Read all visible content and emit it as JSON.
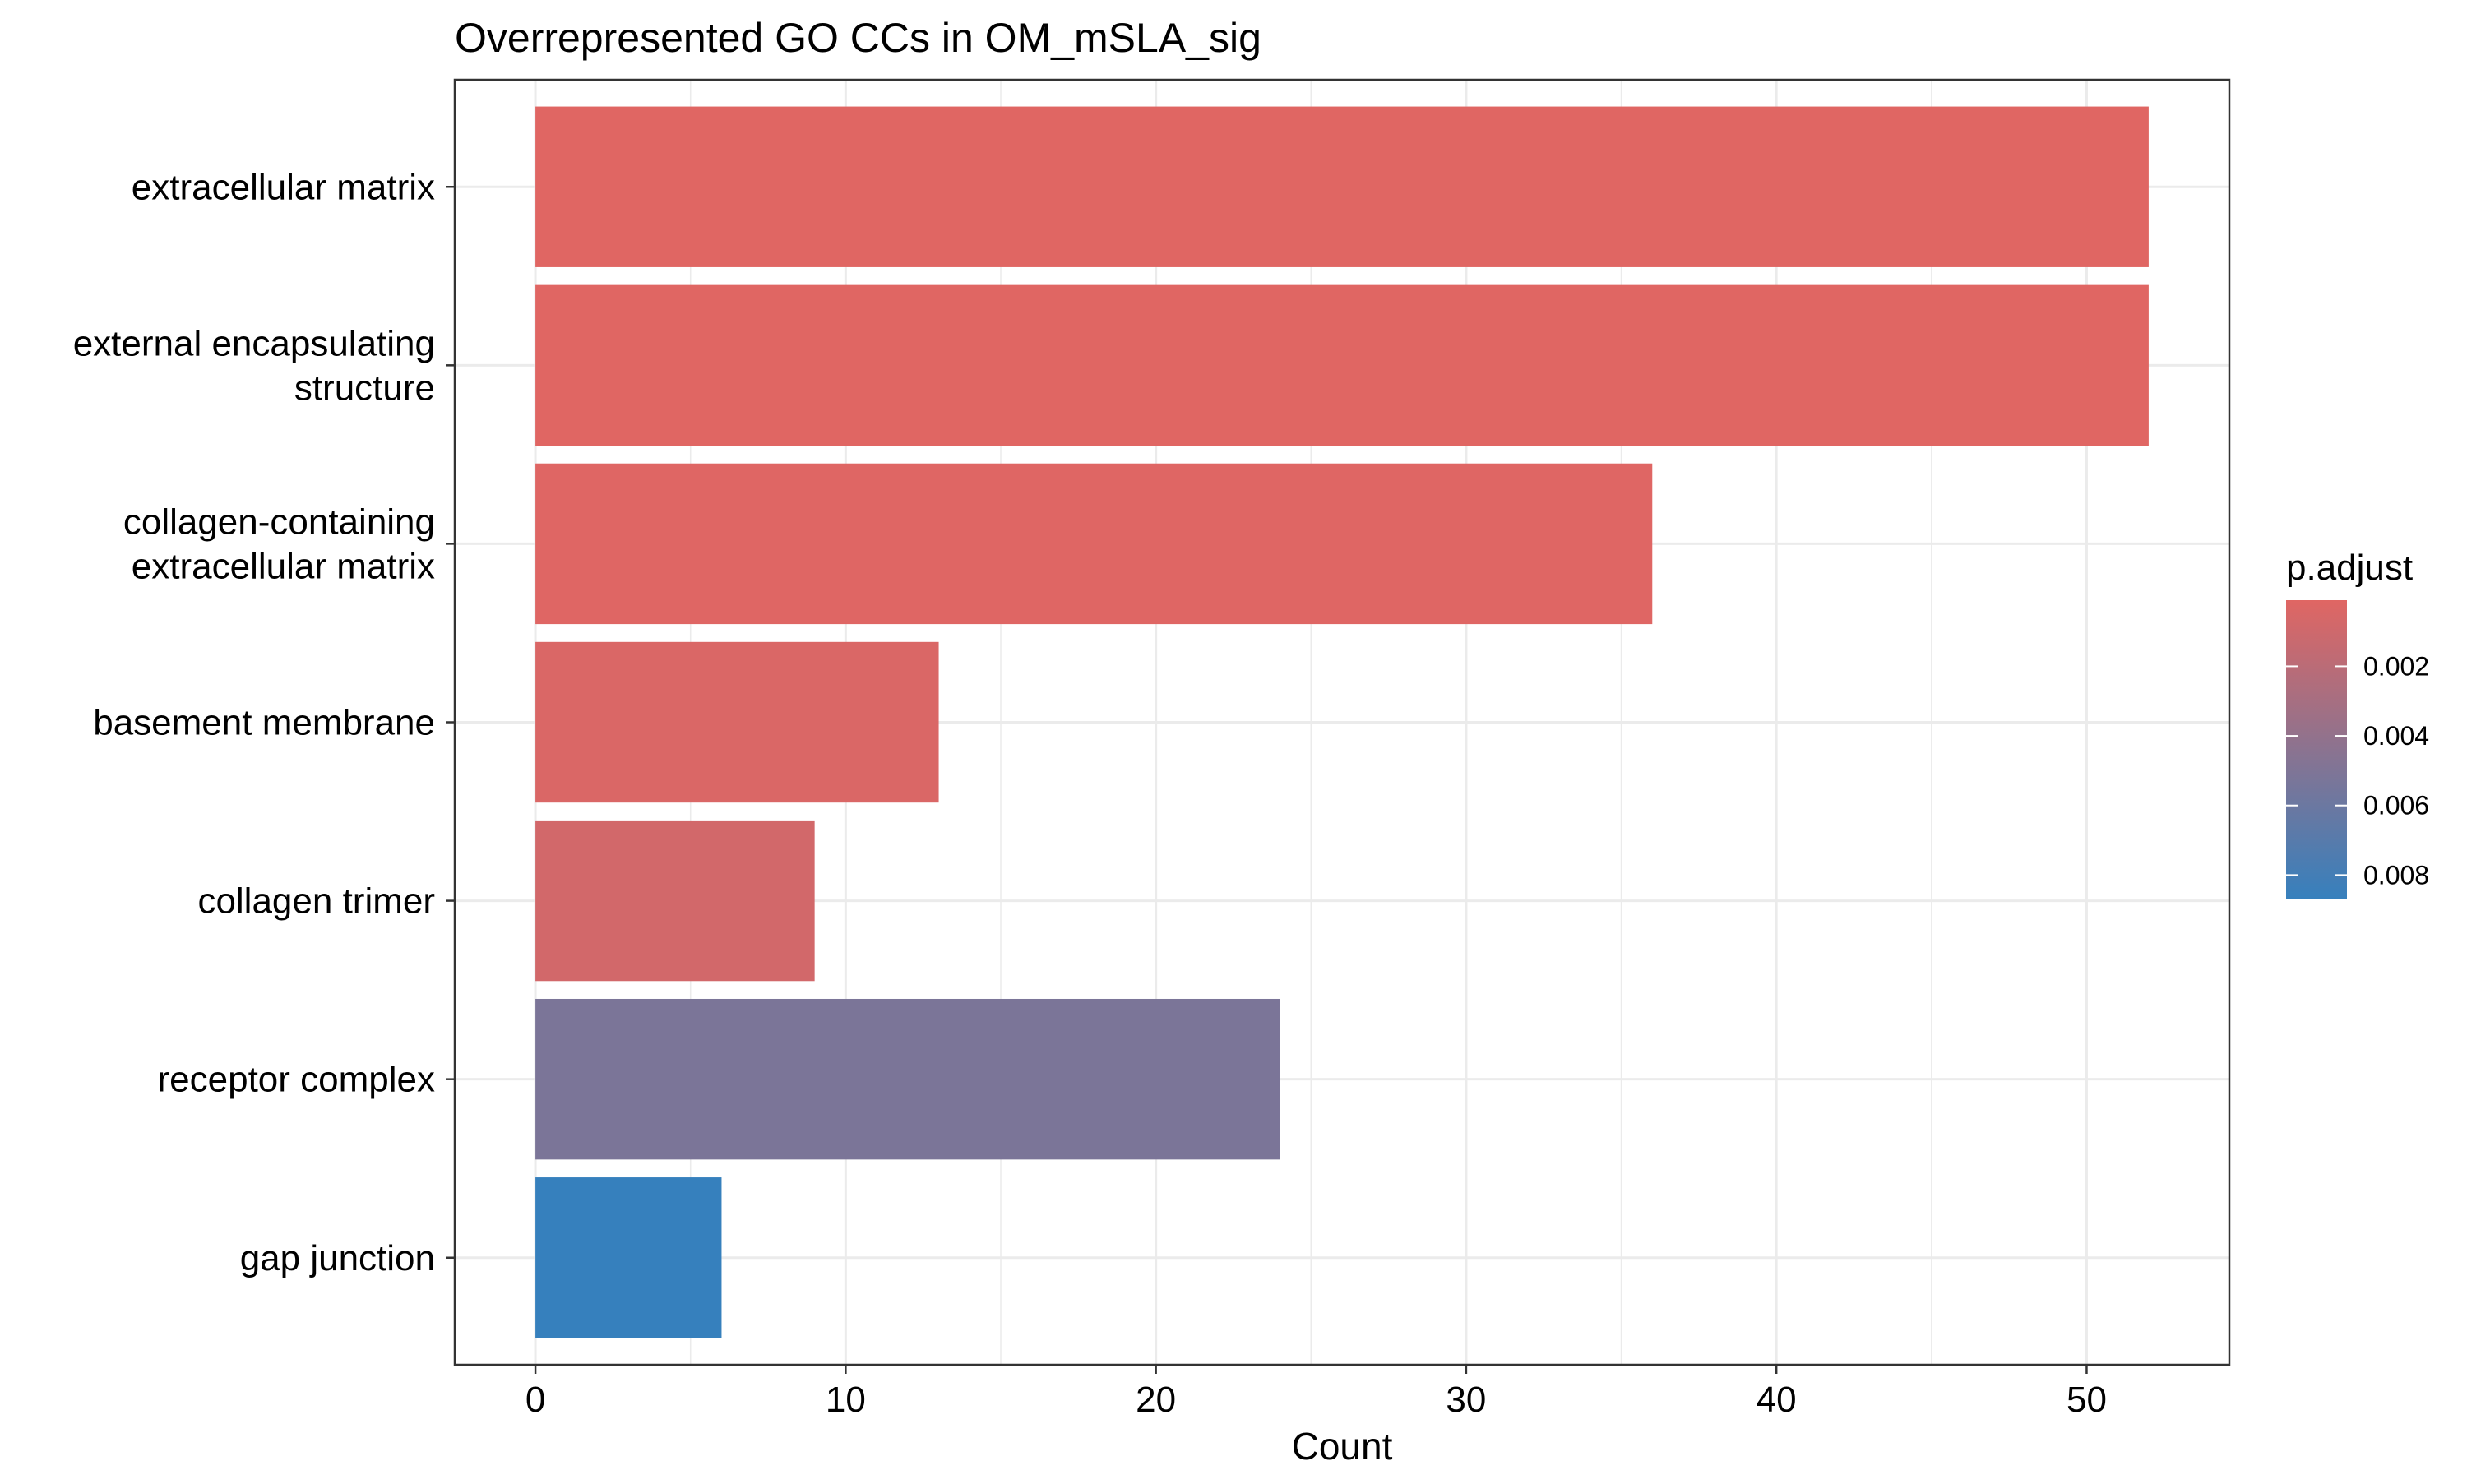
{
  "chart_data": {
    "type": "bar",
    "orientation": "horizontal",
    "title": "Overrepresented GO CCs in OM_mSLA_sig",
    "xlabel": "Count",
    "ylabel": "",
    "xlim": [
      -2.6,
      54.6
    ],
    "xticks": [
      0,
      10,
      20,
      30,
      40,
      50
    ],
    "xtick_labels": [
      "0",
      "10",
      "20",
      "30",
      "40",
      "50"
    ],
    "grid": true,
    "legend_position": "right",
    "categories": [
      [
        "extracellular matrix"
      ],
      [
        "external encapsulating",
        "structure"
      ],
      [
        "collagen-containing",
        "extracellular matrix"
      ],
      [
        "basement membrane"
      ],
      [
        "collagen trimer"
      ],
      [
        "receptor complex"
      ],
      [
        "gap junction"
      ]
    ],
    "values": [
      52,
      52,
      36,
      13,
      9,
      24,
      6
    ],
    "p_adjust": [
      0.0001,
      0.0001,
      0.00015,
      0.0004,
      0.0008,
      0.0052,
      0.0087
    ],
    "colorbar": {
      "title": "p.adjust",
      "min": 0.0001,
      "max": 0.0087,
      "ticks": [
        0.002,
        0.004,
        0.006,
        0.008
      ],
      "tick_labels": [
        "0.002",
        "0.004",
        "0.006",
        "0.008"
      ],
      "low_color": "#E06663",
      "high_color": "#3680BD"
    }
  }
}
